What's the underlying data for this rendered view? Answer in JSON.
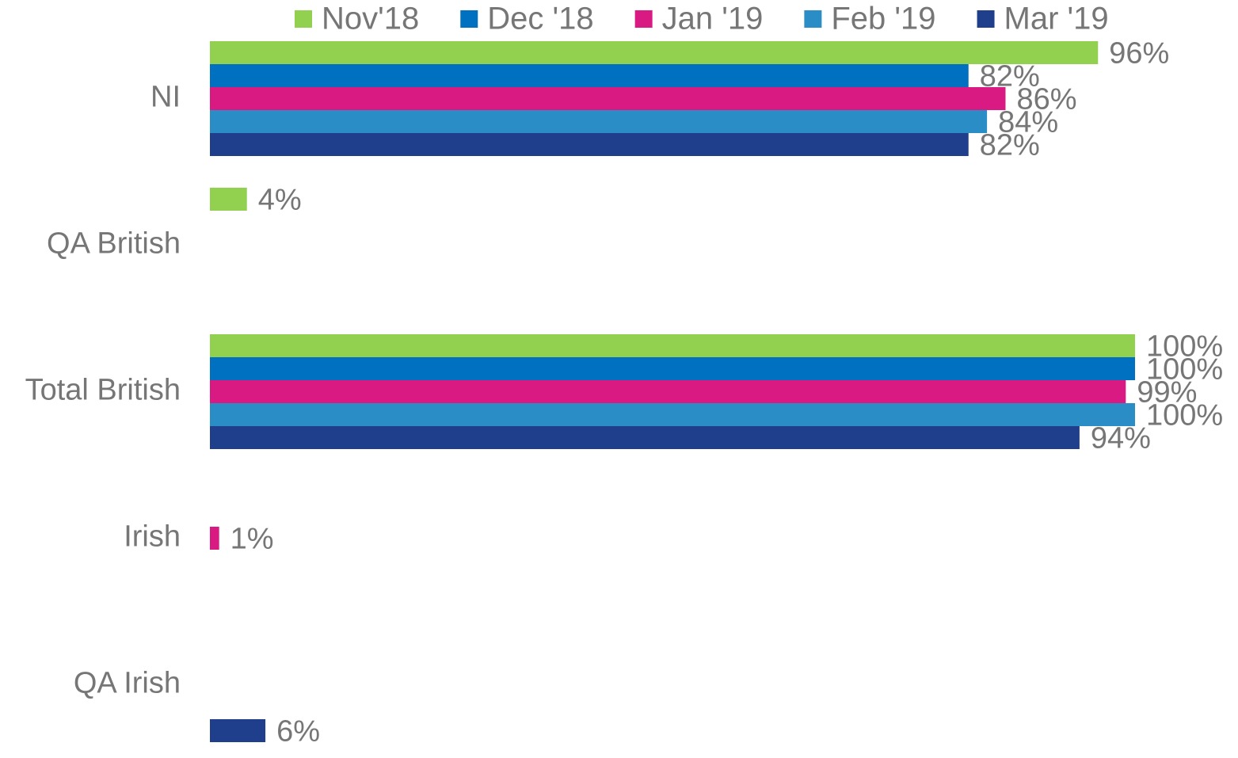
{
  "chart_data": {
    "type": "hbar",
    "categories": [
      "NI",
      "QA British",
      "Total British",
      "Irish",
      "QA Irish"
    ],
    "series": [
      {
        "name": "Nov'18",
        "color": "#92d050",
        "values": [
          96,
          4,
          100,
          null,
          null
        ],
        "value_labels": [
          "96%",
          "4%",
          "100%",
          null,
          null
        ]
      },
      {
        "name": "Dec '18",
        "color": "#0070c0",
        "values": [
          82,
          null,
          100,
          null,
          null
        ],
        "value_labels": [
          "82%",
          null,
          "100%",
          null,
          null
        ]
      },
      {
        "name": "Jan '19",
        "color": "#d91a82",
        "values": [
          86,
          null,
          99,
          1,
          null
        ],
        "value_labels": [
          "86%",
          null,
          "99%",
          "1%",
          null
        ]
      },
      {
        "name": "Feb '19",
        "color": "#2a8dc5",
        "values": [
          84,
          null,
          100,
          null,
          null
        ],
        "value_labels": [
          "84%",
          null,
          "100%",
          null,
          null
        ]
      },
      {
        "name": "Mar '19",
        "color": "#1f3f8c",
        "values": [
          82,
          null,
          94,
          null,
          6
        ],
        "value_labels": [
          "82%",
          null,
          "94%",
          null,
          "6%"
        ]
      }
    ],
    "xlim": [
      0,
      100
    ],
    "legend": "top"
  }
}
